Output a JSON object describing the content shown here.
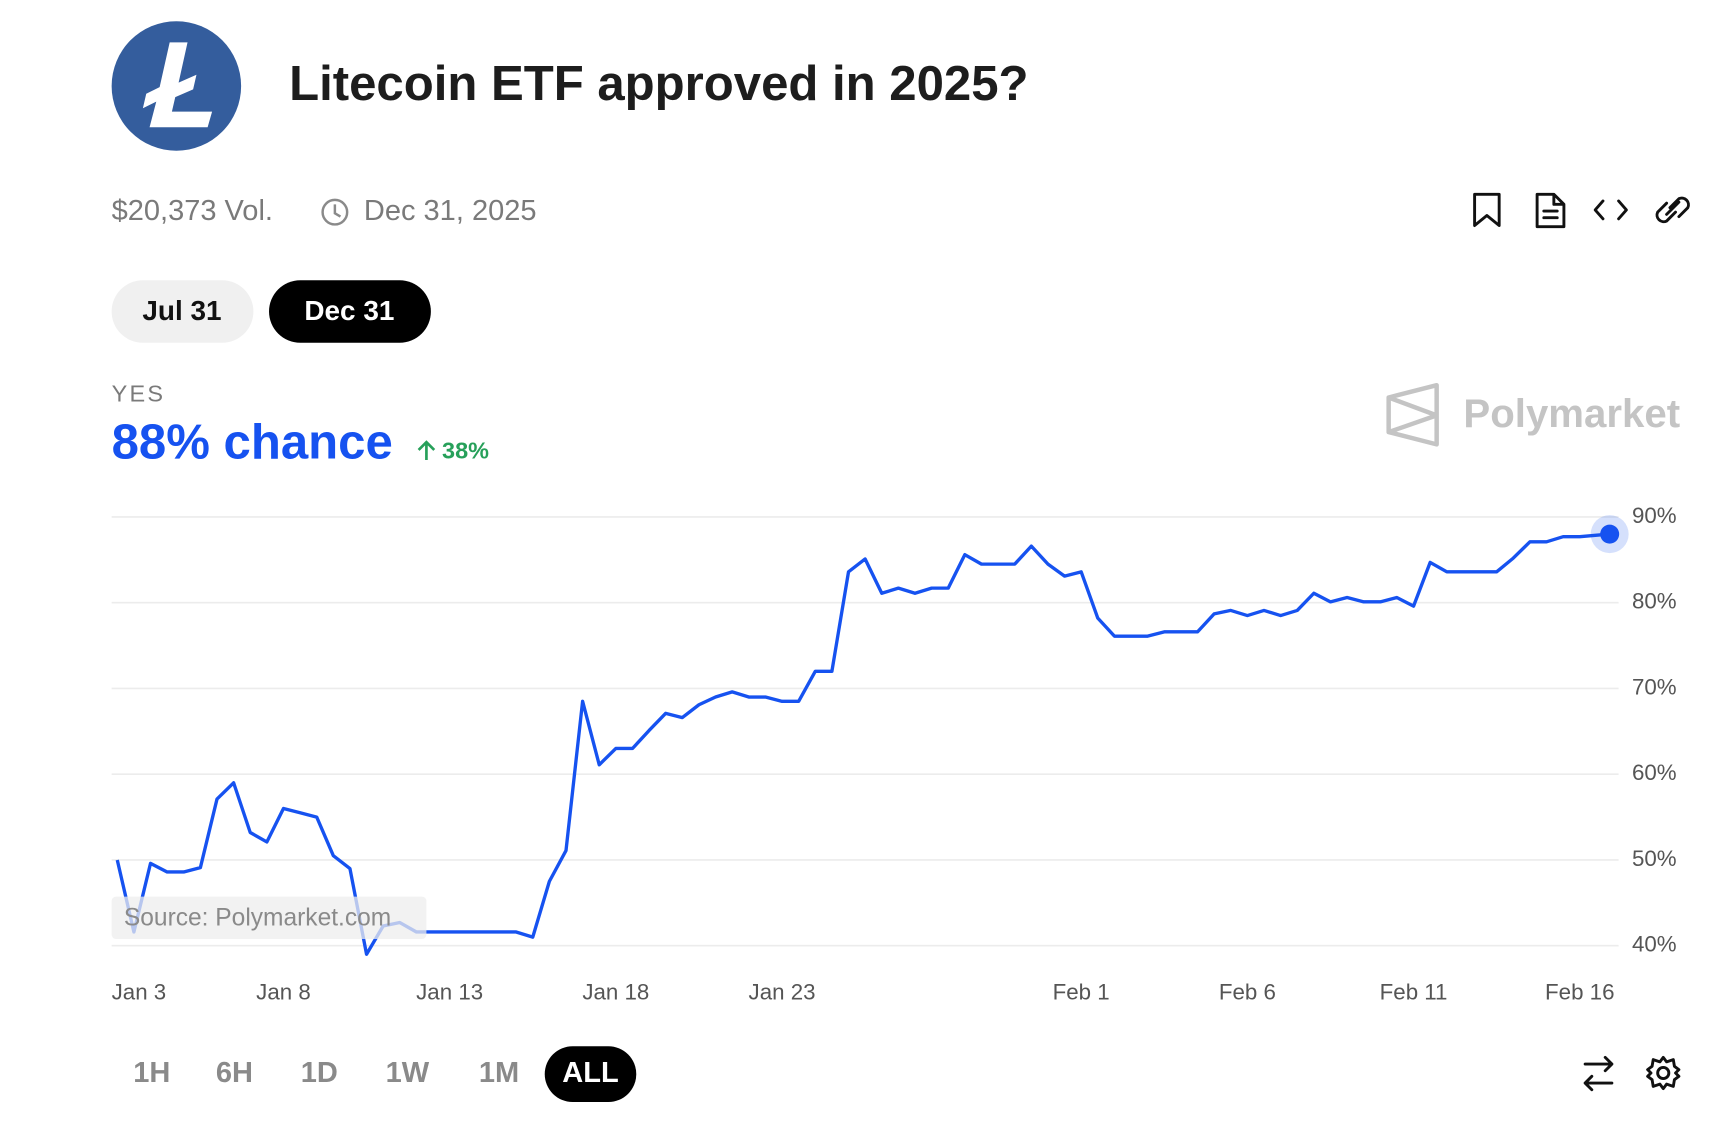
{
  "header": {
    "title": "Litecoin ETF approved in 2025?",
    "volume": "$20,373 Vol.",
    "end_date": "Dec 31, 2025"
  },
  "date_tabs": [
    "Jul 31",
    "Dec 31"
  ],
  "outcome": {
    "label": "YES",
    "chance": "88% chance",
    "change": "38%"
  },
  "brand": "Polymarket",
  "source": "Source: Polymarket.com",
  "time_ranges": [
    "1H",
    "6H",
    "1D",
    "1W",
    "1M",
    "ALL"
  ],
  "chart_data": {
    "type": "line",
    "color": "#1652f0",
    "grid": true,
    "x": [
      0,
      0.5,
      1,
      1.5,
      2,
      2.5,
      3,
      3.5,
      4,
      4.5,
      5,
      5.5,
      6,
      6.5,
      7,
      7.5,
      8,
      8.5,
      9,
      9.5,
      10,
      10.5,
      11,
      11.5,
      12,
      12.5,
      13,
      13.5,
      14,
      14.5,
      15,
      15.5,
      16,
      16.5,
      17,
      17.5,
      18,
      18.5,
      19,
      19.5,
      20,
      20.5,
      21,
      21.5,
      22,
      22.5,
      23,
      23.5,
      24,
      24.5,
      25,
      25.5,
      26,
      26.5,
      27,
      27.5,
      28,
      28.5,
      29,
      29.5,
      30,
      30.5,
      31,
      31.5,
      32,
      32.5,
      33,
      33.5,
      34,
      34.5,
      35,
      35.5,
      36,
      36.5,
      37,
      37.5,
      38,
      38.5,
      39,
      39.5,
      40,
      40.5,
      41,
      41.5,
      42,
      42.5,
      43,
      43.5,
      44,
      44.9
    ],
    "values": [
      50.0,
      41.6,
      49.6,
      48.6,
      48.6,
      49.1,
      57.1,
      59.0,
      53.2,
      52.1,
      56.0,
      55.5,
      55.0,
      50.5,
      49.0,
      39.0,
      42.3,
      42.7,
      41.6,
      41.6,
      41.6,
      41.6,
      41.6,
      41.6,
      41.6,
      41.0,
      47.5,
      51.1,
      68.5,
      61.1,
      63.0,
      63.0,
      65.1,
      67.1,
      66.6,
      68.1,
      69.0,
      69.6,
      69.0,
      69.0,
      68.5,
      68.5,
      72.0,
      72.0,
      83.6,
      85.1,
      81.1,
      81.7,
      81.1,
      81.7,
      81.7,
      85.6,
      84.5,
      84.5,
      84.5,
      86.6,
      84.5,
      83.1,
      83.6,
      78.2,
      76.1,
      76.1,
      76.1,
      76.6,
      76.6,
      76.6,
      78.7,
      79.1,
      78.5,
      79.1,
      78.5,
      79.1,
      81.1,
      80.1,
      80.6,
      80.1,
      80.1,
      80.6,
      79.6,
      84.7,
      83.6,
      83.6,
      83.6,
      83.6,
      85.2,
      87.1,
      87.1,
      87.7,
      87.7,
      88.0
    ],
    "xlim": [
      -0.17,
      44.9
    ],
    "xticks": [
      {
        "value": 0,
        "label": "Jan 3"
      },
      {
        "value": 5,
        "label": "Jan 8"
      },
      {
        "value": 10,
        "label": "Jan 13"
      },
      {
        "value": 15,
        "label": "Jan 18"
      },
      {
        "value": 20,
        "label": "Jan 23"
      },
      {
        "value": 29,
        "label": "Feb 1"
      },
      {
        "value": 34,
        "label": "Feb 6"
      },
      {
        "value": 39,
        "label": "Feb 11"
      },
      {
        "value": 44,
        "label": "Feb 16"
      }
    ],
    "ylim": [
      40,
      90
    ],
    "yticks": [
      {
        "value": 40,
        "label": "40%"
      },
      {
        "value": 50,
        "label": "50%"
      },
      {
        "value": 60,
        "label": "60%"
      },
      {
        "value": 70,
        "label": "70%"
      },
      {
        "value": 80,
        "label": "80%"
      },
      {
        "value": 90,
        "label": "90%"
      }
    ]
  }
}
